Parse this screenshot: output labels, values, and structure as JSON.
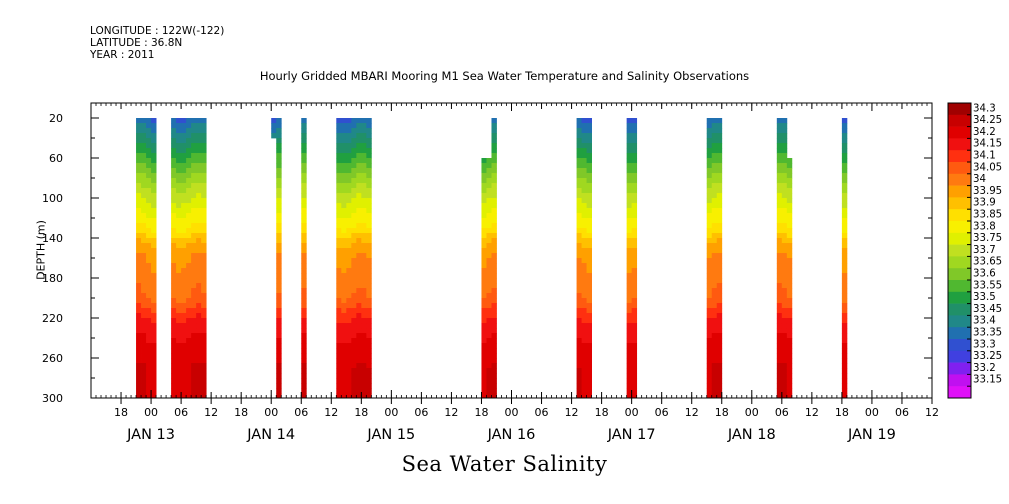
{
  "meta": {
    "longitude": "LONGITUDE : 122W(-122)",
    "latitude": "LATITUDE : 36.8N",
    "year": "YEAR : 2011"
  },
  "title": "Hourly Gridded MBARI Mooring M1 Sea Water Temperature and Salinity Observations",
  "bottom_title": "Sea Water Salinity",
  "chart_data": {
    "type": "heatmap",
    "title": "Hourly Gridded MBARI Mooring M1 Sea Water Temperature and Salinity Observations",
    "xlabel": "",
    "ylabel": "DEPTH (m)",
    "x_unit": "hours since JAN 13 00:00",
    "xlim": [
      -12,
      156
    ],
    "ylim": [
      300,
      5
    ],
    "y_ticks": [
      20,
      60,
      100,
      140,
      180,
      220,
      260,
      300
    ],
    "x_tick_hours": [
      "06",
      "12",
      "18",
      "00"
    ],
    "day_labels": [
      {
        "label": "JAN 13",
        "hour": 0
      },
      {
        "label": "JAN 14",
        "hour": 24
      },
      {
        "label": "JAN 15",
        "hour": 48
      },
      {
        "label": "JAN 16",
        "hour": 72
      },
      {
        "label": "JAN 17",
        "hour": 96
      },
      {
        "label": "JAN 18",
        "hour": 120
      },
      {
        "label": "JAN 19",
        "hour": 144
      }
    ],
    "colorbar": {
      "levels": [
        "34.3",
        "34.25",
        "34.2",
        "34.15",
        "34.1",
        "34.05",
        "34",
        "33.95",
        "33.9",
        "33.85",
        "33.8",
        "33.75",
        "33.7",
        "33.65",
        "33.6",
        "33.55",
        "33.5",
        "33.45",
        "33.4",
        "33.35",
        "33.3",
        "33.25",
        "33.2",
        "33.15"
      ],
      "colors": [
        "#a00000",
        "#c80000",
        "#e00000",
        "#f01010",
        "#ff3010",
        "#ff5a10",
        "#ff7a10",
        "#ffa000",
        "#ffc000",
        "#ffe000",
        "#f8f000",
        "#e0f000",
        "#c0e020",
        "#a0d820",
        "#80c828",
        "#50b830",
        "#20a040",
        "#209068",
        "#208888",
        "#2070b0",
        "#3050d0",
        "#4040e0",
        "#8020f0",
        "#c010f0",
        "#e010f8"
      ]
    },
    "data_segments": [
      {
        "start": -3,
        "end": 1,
        "top": 20,
        "bottom": 300
      },
      {
        "start": 4,
        "end": 11,
        "top": 20,
        "bottom": 300
      },
      {
        "start": 24,
        "end": 26,
        "top": 20,
        "bottom": 40,
        "note": "short cap"
      },
      {
        "start": 25,
        "end": 26,
        "top": 40,
        "bottom": 300
      },
      {
        "start": 30,
        "end": 31,
        "top": 20,
        "bottom": 300
      },
      {
        "start": 37,
        "end": 44,
        "top": 20,
        "bottom": 300
      },
      {
        "start": 66,
        "end": 68,
        "top": 60,
        "bottom": 300
      },
      {
        "start": 68,
        "end": 69,
        "top": 20,
        "bottom": 300
      },
      {
        "start": 85,
        "end": 88,
        "top": 20,
        "bottom": 300
      },
      {
        "start": 95,
        "end": 97,
        "top": 20,
        "bottom": 300
      },
      {
        "start": 111,
        "end": 114,
        "top": 20,
        "bottom": 300
      },
      {
        "start": 125,
        "end": 127,
        "top": 20,
        "bottom": 300
      },
      {
        "start": 127,
        "end": 128,
        "top": 60,
        "bottom": 300
      },
      {
        "start": 138,
        "end": 139,
        "top": 20,
        "bottom": 300
      }
    ],
    "profile": [
      {
        "depth": 20,
        "salinity": 33.35
      },
      {
        "depth": 50,
        "salinity": 33.5
      },
      {
        "depth": 70,
        "salinity": 33.6
      },
      {
        "depth": 90,
        "salinity": 33.7
      },
      {
        "depth": 110,
        "salinity": 33.78
      },
      {
        "depth": 130,
        "salinity": 33.85
      },
      {
        "depth": 145,
        "salinity": 33.95
      },
      {
        "depth": 160,
        "salinity": 34.0
      },
      {
        "depth": 200,
        "salinity": 34.05
      },
      {
        "depth": 220,
        "salinity": 34.15
      },
      {
        "depth": 240,
        "salinity": 34.2
      },
      {
        "depth": 270,
        "salinity": 34.25
      },
      {
        "depth": 300,
        "salinity": 34.25
      }
    ]
  }
}
